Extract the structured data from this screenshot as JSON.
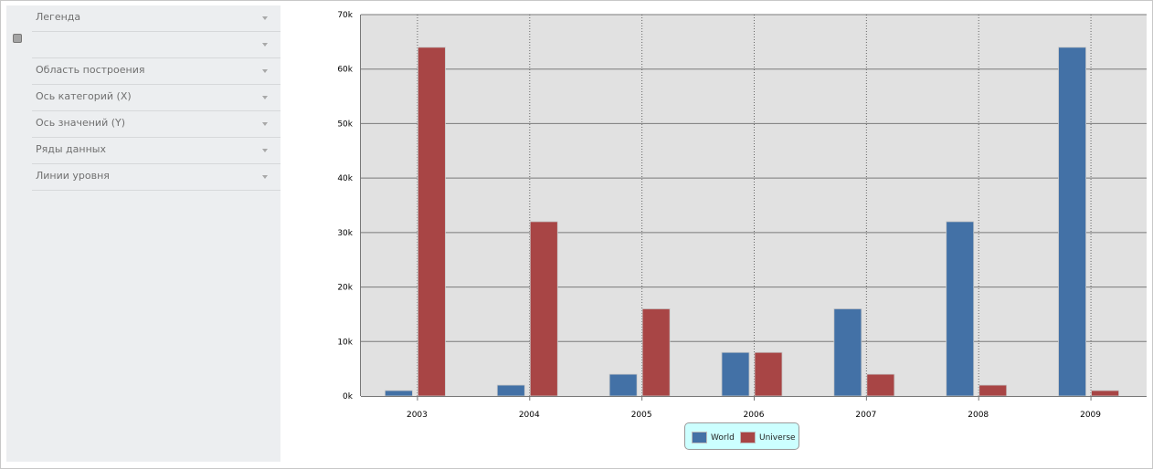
{
  "sidebar": {
    "items": [
      {
        "label": "Легенда"
      },
      {
        "label": ""
      },
      {
        "label": "Область построения"
      },
      {
        "label": "Ось категорий (X)"
      },
      {
        "label": "Ось значений (Y)"
      },
      {
        "label": "Ряды данных"
      },
      {
        "label": "Линии уровня"
      }
    ]
  },
  "chart_data": {
    "type": "bar",
    "categories": [
      "2003",
      "2004",
      "2005",
      "2006",
      "2007",
      "2008",
      "2009"
    ],
    "series": [
      {
        "name": "World",
        "color": "#4371a6",
        "values": [
          1000,
          2000,
          4000,
          8000,
          16000,
          32000,
          64000
        ]
      },
      {
        "name": "Universe",
        "color": "#a84545",
        "values": [
          64000,
          32000,
          16000,
          8000,
          4000,
          2000,
          1000
        ]
      }
    ],
    "yticks": [
      "0k",
      "10k",
      "20k",
      "30k",
      "40k",
      "50k",
      "60k",
      "70k"
    ],
    "ylim": [
      0,
      70000
    ],
    "grid": "horizontal solid, vertical dotted",
    "legend_position": "bottom",
    "plot_background": "#e1e1e1",
    "legend_background": "#ccffff"
  }
}
